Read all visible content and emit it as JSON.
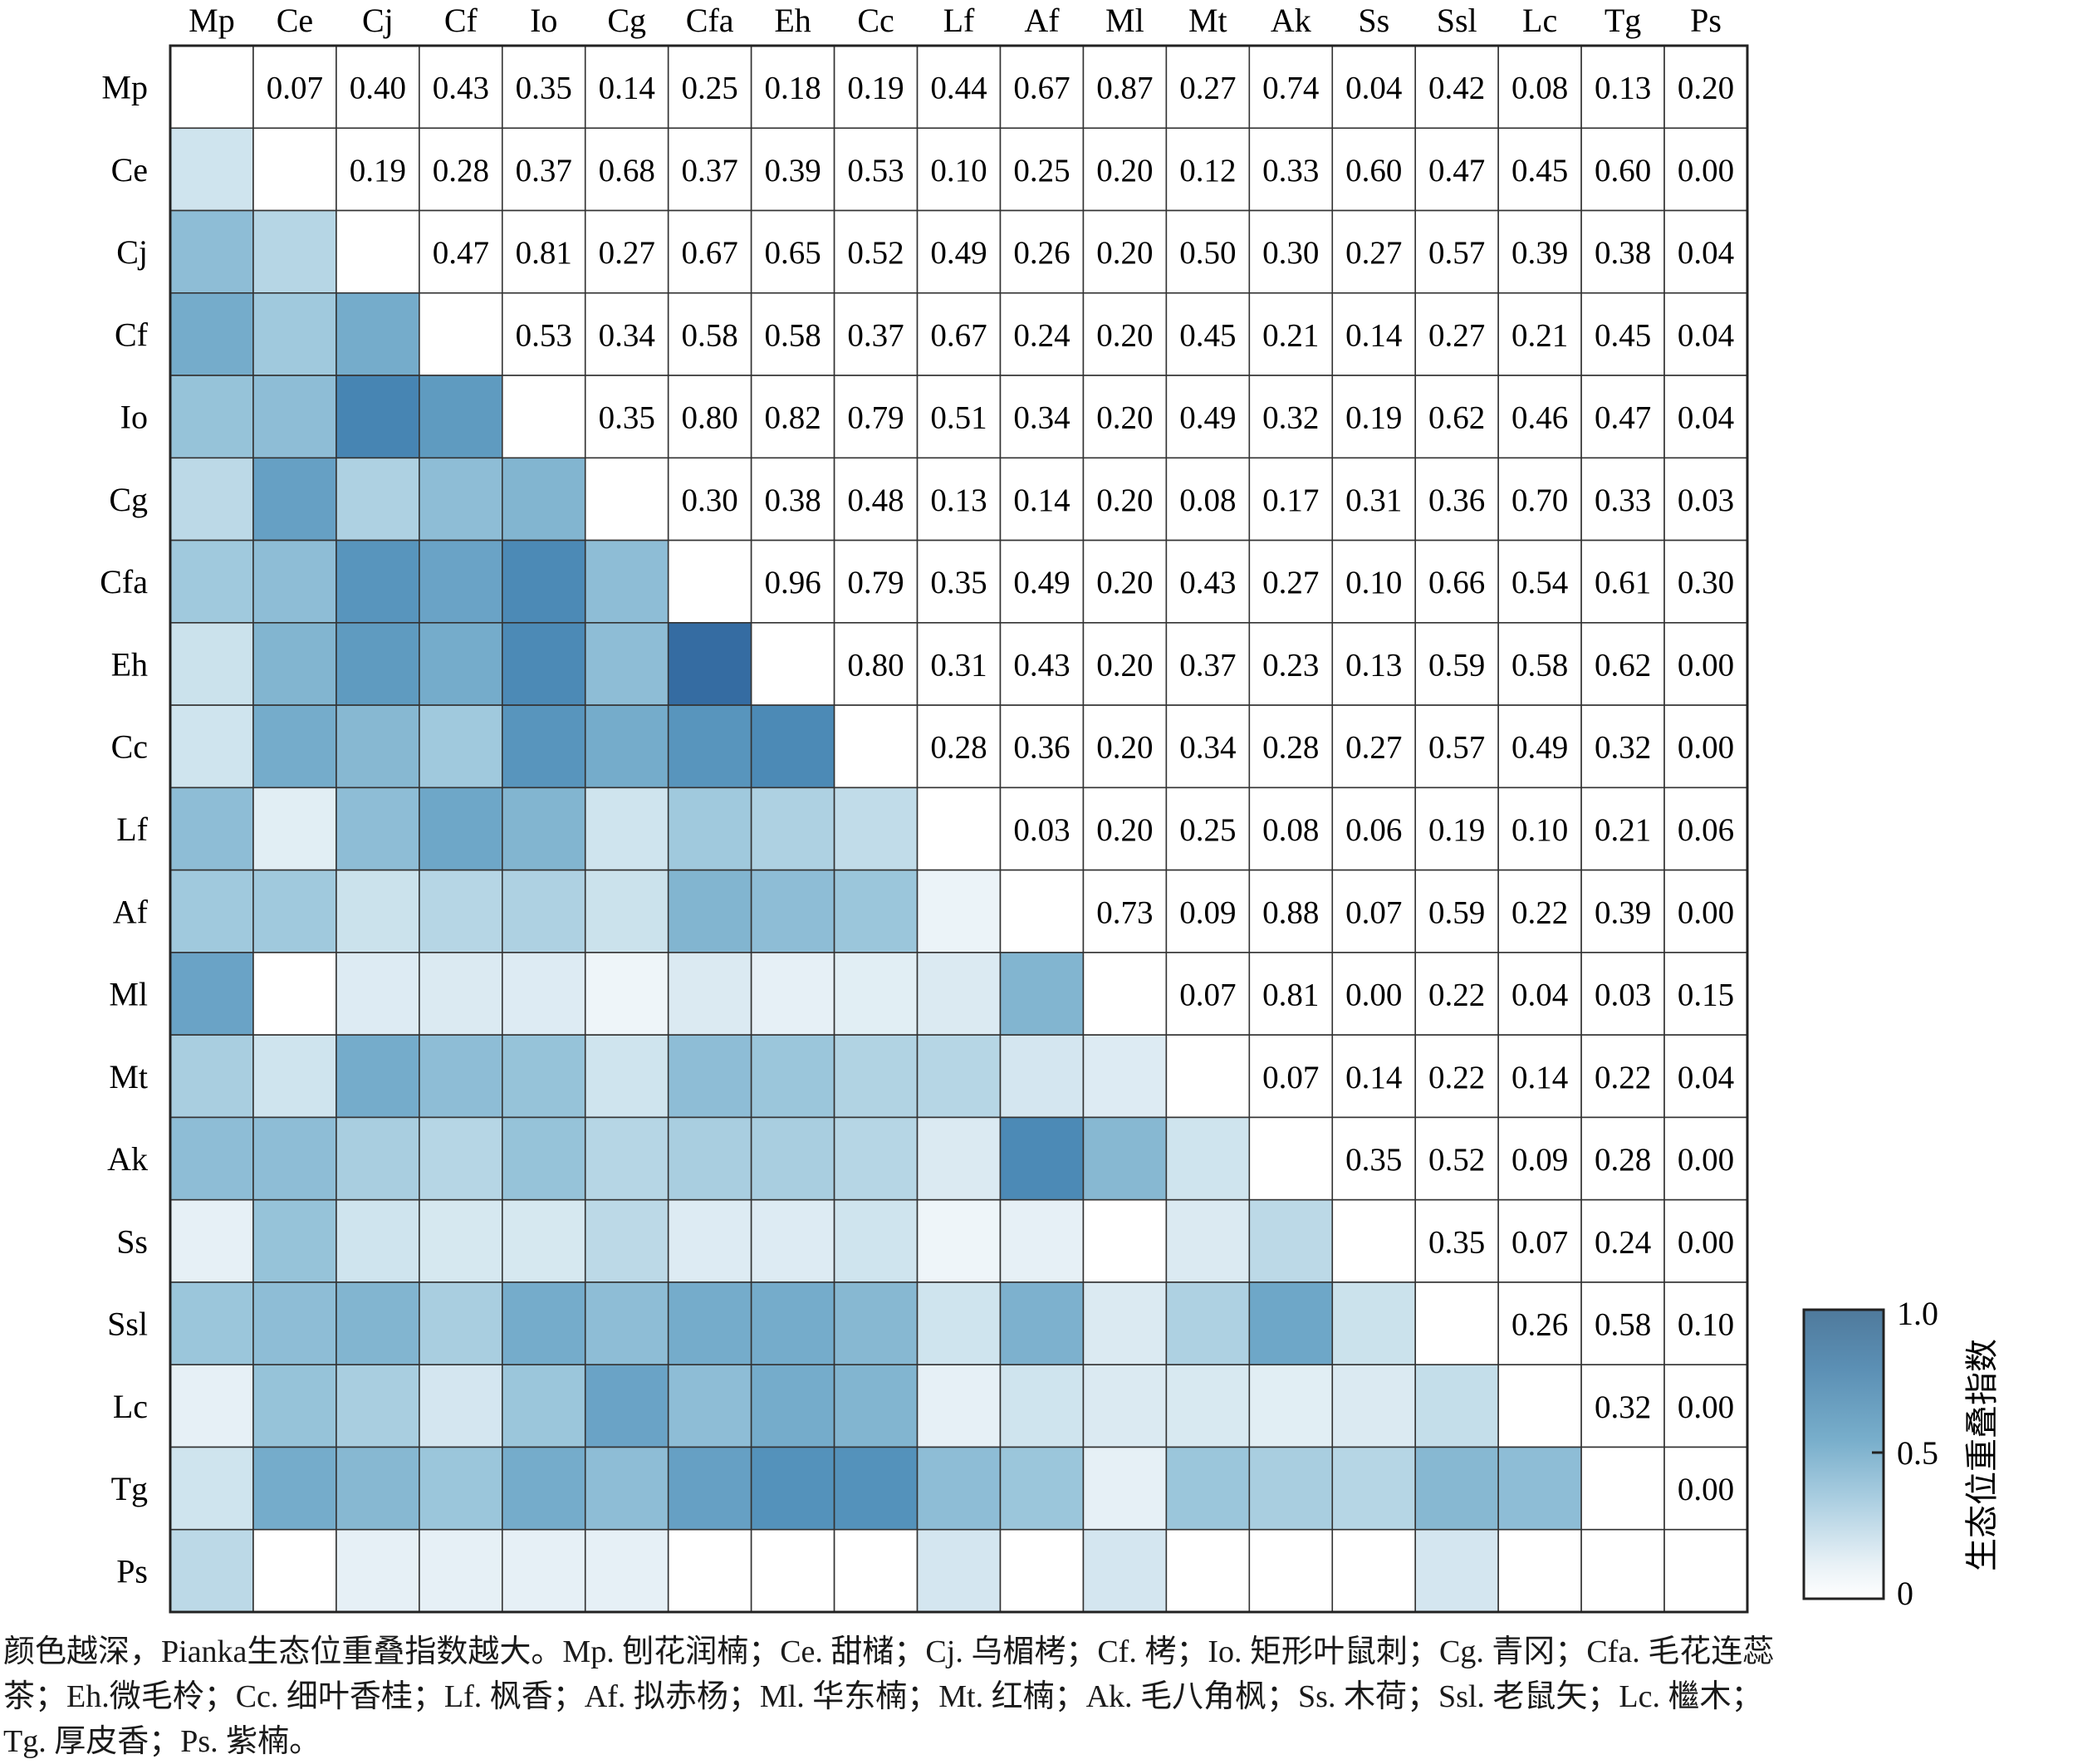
{
  "chart_data": {
    "type": "heatmap",
    "species": [
      "Mp",
      "Ce",
      "Cj",
      "Cf",
      "Io",
      "Cg",
      "Cfa",
      "Eh",
      "Cc",
      "Lf",
      "Af",
      "Ml",
      "Mt",
      "Ak",
      "Ss",
      "Ssl",
      "Lc",
      "Tg",
      "Ps"
    ],
    "upper_triangle_values": [
      [
        null,
        0.07,
        0.4,
        0.43,
        0.35,
        0.14,
        0.25,
        0.18,
        0.19,
        0.44,
        0.67,
        0.87,
        0.27,
        0.74,
        0.04,
        0.42,
        0.08,
        0.13,
        0.2
      ],
      [
        null,
        null,
        0.19,
        0.28,
        0.37,
        0.68,
        0.37,
        0.39,
        0.53,
        0.1,
        0.25,
        0.2,
        0.12,
        0.33,
        0.6,
        0.47,
        0.45,
        0.6,
        0.0
      ],
      [
        null,
        null,
        null,
        0.47,
        0.81,
        0.27,
        0.67,
        0.65,
        0.52,
        0.49,
        0.26,
        0.2,
        0.5,
        0.3,
        0.27,
        0.57,
        0.39,
        0.38,
        0.04
      ],
      [
        null,
        null,
        null,
        null,
        0.53,
        0.34,
        0.58,
        0.58,
        0.37,
        0.67,
        0.24,
        0.2,
        0.45,
        0.21,
        0.14,
        0.27,
        0.21,
        0.45,
        0.04
      ],
      [
        null,
        null,
        null,
        null,
        null,
        0.35,
        0.8,
        0.82,
        0.79,
        0.51,
        0.34,
        0.2,
        0.49,
        0.32,
        0.19,
        0.62,
        0.46,
        0.47,
        0.04
      ],
      [
        null,
        null,
        null,
        null,
        null,
        null,
        0.3,
        0.38,
        0.48,
        0.13,
        0.14,
        0.2,
        0.08,
        0.17,
        0.31,
        0.36,
        0.7,
        0.33,
        0.03
      ],
      [
        null,
        null,
        null,
        null,
        null,
        null,
        null,
        0.96,
        0.79,
        0.35,
        0.49,
        0.2,
        0.43,
        0.27,
        0.1,
        0.66,
        0.54,
        0.61,
        0.3
      ],
      [
        null,
        null,
        null,
        null,
        null,
        null,
        null,
        null,
        0.8,
        0.31,
        0.43,
        0.2,
        0.37,
        0.23,
        0.13,
        0.59,
        0.58,
        0.62,
        0.0
      ],
      [
        null,
        null,
        null,
        null,
        null,
        null,
        null,
        null,
        null,
        0.28,
        0.36,
        0.2,
        0.34,
        0.28,
        0.27,
        0.57,
        0.49,
        0.32,
        0.0
      ],
      [
        null,
        null,
        null,
        null,
        null,
        null,
        null,
        null,
        null,
        null,
        0.03,
        0.2,
        0.25,
        0.08,
        0.06,
        0.19,
        0.1,
        0.21,
        0.06
      ],
      [
        null,
        null,
        null,
        null,
        null,
        null,
        null,
        null,
        null,
        null,
        null,
        0.73,
        0.09,
        0.88,
        0.07,
        0.59,
        0.22,
        0.39,
        0.0
      ],
      [
        null,
        null,
        null,
        null,
        null,
        null,
        null,
        null,
        null,
        null,
        null,
        null,
        0.07,
        0.81,
        0.0,
        0.22,
        0.04,
        0.03,
        0.15
      ],
      [
        null,
        null,
        null,
        null,
        null,
        null,
        null,
        null,
        null,
        null,
        null,
        null,
        null,
        0.07,
        0.14,
        0.22,
        0.14,
        0.22,
        0.04
      ],
      [
        null,
        null,
        null,
        null,
        null,
        null,
        null,
        null,
        null,
        null,
        null,
        null,
        null,
        null,
        0.35,
        0.52,
        0.09,
        0.28,
        0.0
      ],
      [
        null,
        null,
        null,
        null,
        null,
        null,
        null,
        null,
        null,
        null,
        null,
        null,
        null,
        null,
        null,
        0.35,
        0.07,
        0.24,
        0.0
      ],
      [
        null,
        null,
        null,
        null,
        null,
        null,
        null,
        null,
        null,
        null,
        null,
        null,
        null,
        null,
        null,
        null,
        0.26,
        0.58,
        0.1
      ],
      [
        null,
        null,
        null,
        null,
        null,
        null,
        null,
        null,
        null,
        null,
        null,
        null,
        null,
        null,
        null,
        null,
        null,
        0.32,
        0.0
      ],
      [
        null,
        null,
        null,
        null,
        null,
        null,
        null,
        null,
        null,
        null,
        null,
        null,
        null,
        null,
        null,
        null,
        null,
        null,
        0.0
      ],
      [
        null,
        null,
        null,
        null,
        null,
        null,
        null,
        null,
        null,
        null,
        null,
        null,
        null,
        null,
        null,
        null,
        null,
        null,
        null
      ]
    ],
    "lower_triangle_color_values_estimated": [
      [],
      [
        0.2
      ],
      [
        0.45,
        0.3
      ],
      [
        0.55,
        0.38,
        0.55
      ],
      [
        0.42,
        0.45,
        0.78,
        0.65
      ],
      [
        0.28,
        0.62,
        0.33,
        0.45,
        0.5
      ],
      [
        0.38,
        0.45,
        0.68,
        0.6,
        0.75,
        0.45
      ],
      [
        0.22,
        0.5,
        0.65,
        0.55,
        0.75,
        0.45,
        0.92
      ],
      [
        0.2,
        0.55,
        0.48,
        0.38,
        0.68,
        0.55,
        0.68,
        0.75
      ],
      [
        0.45,
        0.12,
        0.45,
        0.58,
        0.5,
        0.2,
        0.38,
        0.33,
        0.26
      ],
      [
        0.38,
        0.38,
        0.22,
        0.3,
        0.33,
        0.22,
        0.5,
        0.45,
        0.4,
        0.08
      ],
      [
        0.6,
        0.0,
        0.14,
        0.15,
        0.14,
        0.07,
        0.15,
        0.1,
        0.12,
        0.15,
        0.5
      ],
      [
        0.35,
        0.2,
        0.55,
        0.45,
        0.42,
        0.2,
        0.45,
        0.4,
        0.32,
        0.3,
        0.18,
        0.14
      ],
      [
        0.45,
        0.45,
        0.35,
        0.3,
        0.42,
        0.3,
        0.35,
        0.35,
        0.3,
        0.15,
        0.75,
        0.48,
        0.2
      ],
      [
        0.1,
        0.42,
        0.2,
        0.17,
        0.17,
        0.28,
        0.14,
        0.14,
        0.2,
        0.07,
        0.1,
        0.0,
        0.15,
        0.28
      ],
      [
        0.4,
        0.45,
        0.5,
        0.35,
        0.55,
        0.45,
        0.55,
        0.55,
        0.48,
        0.2,
        0.52,
        0.15,
        0.33,
        0.58,
        0.22
      ],
      [
        0.1,
        0.42,
        0.35,
        0.18,
        0.4,
        0.6,
        0.45,
        0.55,
        0.5,
        0.1,
        0.2,
        0.15,
        0.16,
        0.12,
        0.15,
        0.25
      ],
      [
        0.2,
        0.55,
        0.48,
        0.4,
        0.55,
        0.45,
        0.62,
        0.7,
        0.7,
        0.45,
        0.4,
        0.1,
        0.4,
        0.35,
        0.3,
        0.48,
        0.45
      ],
      [
        0.28,
        0.0,
        0.1,
        0.1,
        0.1,
        0.1,
        0.0,
        0.0,
        0.0,
        0.18,
        0.0,
        0.18,
        0.0,
        0.0,
        0.0,
        0.18,
        0.0,
        0.0
      ]
    ],
    "colorbar": {
      "title": "生态位重叠指数",
      "range": [
        0,
        1.0
      ],
      "tick_labels": [
        "1.0",
        "0.5",
        "0"
      ],
      "ticks": [
        1.0,
        0.5,
        0
      ],
      "color_low": "#ffffff",
      "color_mid": "#7fb4cf",
      "color_high": "#4f7a9c",
      "placement": "right"
    },
    "title": "",
    "xlabel": "",
    "ylabel": ""
  },
  "colors": {
    "cell_palette_low": "#ffffff",
    "cell_palette_mid": "#86bad3",
    "cell_palette_high": "#2f5f98",
    "grid_line": "#333333"
  },
  "caption": {
    "lines": [
      "颜色越深，Pianka生态位重叠指数越大。Mp. 刨花润楠；Ce. 甜槠；Cj. 乌楣栲；Cf. 栲；Io. 矩形叶鼠刺；Cg. 青冈；Cfa. 毛花连蕊",
      "茶；Eh.微毛柃；Cc. 细叶香桂；Lf. 枫香；Af. 拟赤杨；Ml. 华东楠；Mt. 红楠；Ak. 毛八角枫；Ss. 木荷；Ssl. 老鼠矢；Lc. 檵木；",
      "Tg. 厚皮香；Ps. 紫楠。"
    ]
  }
}
